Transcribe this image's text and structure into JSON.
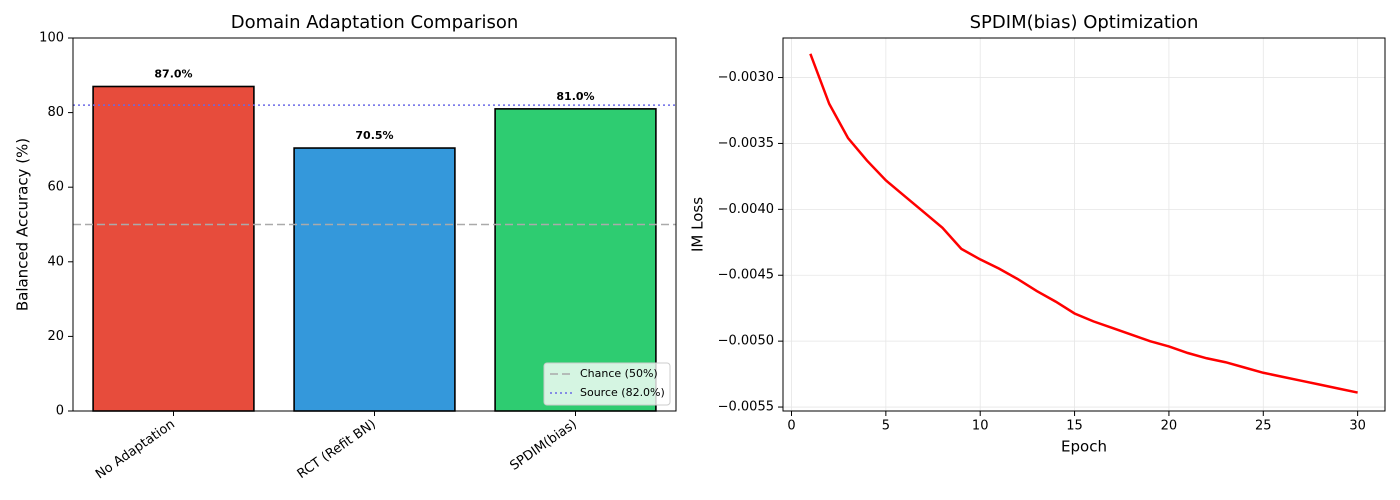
{
  "chart_data": [
    {
      "type": "bar",
      "title": "Domain Adaptation Comparison",
      "ylabel": "Balanced Accuracy (%)",
      "categories": [
        "No Adaptation",
        "RCT (Refit BN)",
        "SPDIM(bias)"
      ],
      "values": [
        87.0,
        70.5,
        81.0
      ],
      "value_labels": [
        "87.0%",
        "70.5%",
        "81.0%"
      ],
      "colors": [
        "#e74c3c",
        "#3498db",
        "#2ecc71"
      ],
      "ylim": [
        0,
        100
      ],
      "yticks": [
        0,
        20,
        40,
        60,
        80,
        100
      ],
      "grid": false,
      "reference_lines": [
        {
          "value": 50,
          "label": "Chance (50%)",
          "color": "#aaaaaa",
          "style": "dashed"
        },
        {
          "value": 82.0,
          "label": "Source (82.0%)",
          "color": "#6a6ae6",
          "style": "dotted"
        }
      ],
      "legend": "lower right"
    },
    {
      "type": "line",
      "title": "SPDIM(bias) Optimization",
      "xlabel": "Epoch",
      "ylabel": "IM Loss",
      "x": [
        1,
        2,
        3,
        4,
        5,
        6,
        7,
        8,
        9,
        10,
        11,
        12,
        13,
        14,
        15,
        16,
        17,
        18,
        19,
        20,
        21,
        22,
        23,
        24,
        25,
        26,
        27,
        28,
        29,
        30
      ],
      "series": [
        {
          "color": "#ff0000",
          "values": [
            -0.00282,
            -0.0032,
            -0.00346,
            -0.00363,
            -0.00378,
            -0.0039,
            -0.00402,
            -0.00414,
            -0.0043,
            -0.00438,
            -0.00445,
            -0.00453,
            -0.00462,
            -0.0047,
            -0.00479,
            -0.00485,
            -0.0049,
            -0.00495,
            -0.005,
            -0.00504,
            -0.00509,
            -0.00513,
            -0.00516,
            -0.0052,
            -0.00524,
            -0.00527,
            -0.0053,
            -0.00533,
            -0.00536,
            -0.00539
          ]
        }
      ],
      "xlim": [
        -0.45,
        31.45
      ],
      "xticks": [
        0,
        5,
        10,
        15,
        20,
        25,
        30
      ],
      "ylim": [
        -0.00553,
        -0.0027
      ],
      "yticks": [
        {
          "value": -0.0055,
          "label": "−0.0055"
        },
        {
          "value": -0.005,
          "label": "−0.0050"
        },
        {
          "value": -0.0045,
          "label": "−0.0045"
        },
        {
          "value": -0.004,
          "label": "−0.0040"
        },
        {
          "value": -0.0035,
          "label": "−0.0035"
        },
        {
          "value": -0.003,
          "label": "−0.0030"
        }
      ],
      "grid": true
    }
  ]
}
